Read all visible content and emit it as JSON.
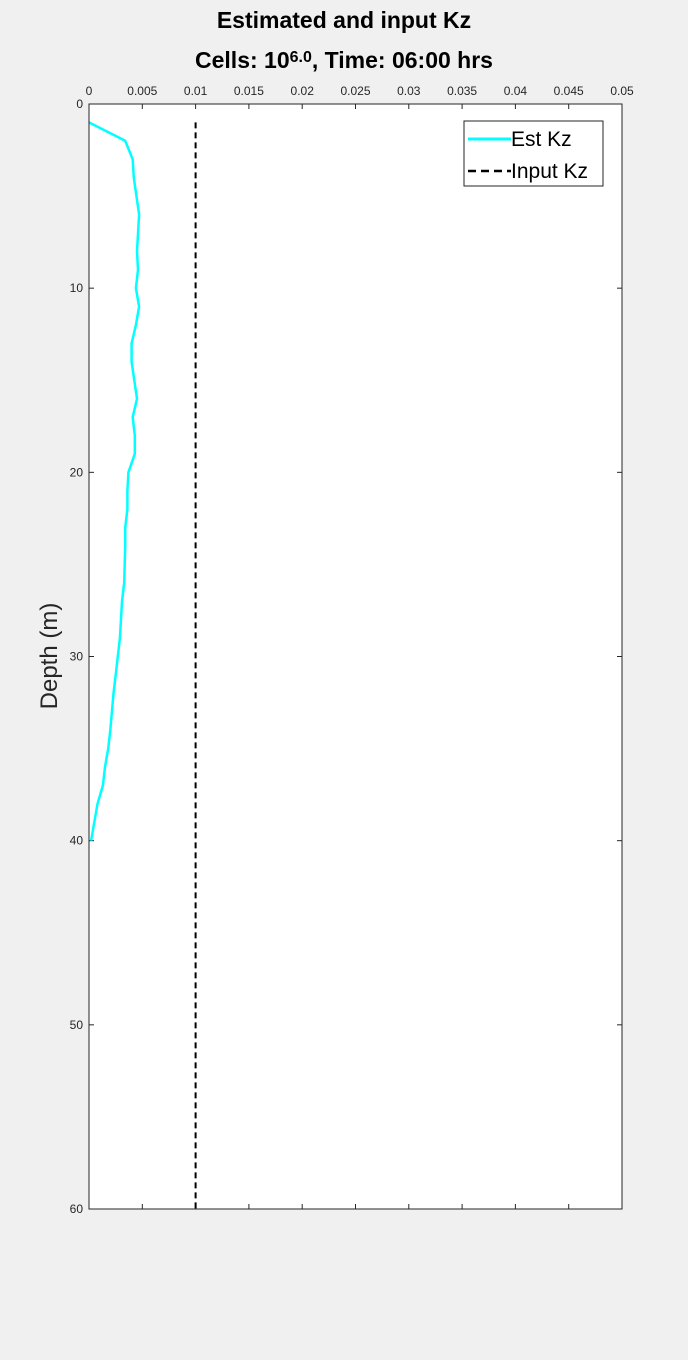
{
  "chart_data": {
    "type": "line",
    "title": "Estimated and input Kz",
    "subtitle_prefix": "Cells: 10",
    "subtitle_exponent": "6.0",
    "subtitle_suffix": ", Time: 06:00 hrs",
    "xlabel": "",
    "ylabel": "Depth (m)",
    "xlim": [
      0,
      0.05
    ],
    "ylim": [
      0,
      60
    ],
    "y_reversed": true,
    "x_axis_location": "top",
    "grid": false,
    "legend_location": "top-right",
    "x_ticks": [
      0,
      0.005,
      0.01,
      0.015,
      0.02,
      0.025,
      0.03,
      0.035,
      0.04,
      0.045,
      0.05
    ],
    "x_tick_labels": [
      "0",
      "0.005",
      "0.01",
      "0.015",
      "0.02",
      "0.025",
      "0.03",
      "0.035",
      "0.04",
      "0.045",
      "0.05"
    ],
    "y_ticks": [
      0,
      10,
      20,
      30,
      40,
      50,
      60
    ],
    "y_tick_labels": [
      "0",
      "10",
      "20",
      "30",
      "40",
      "50",
      "60"
    ],
    "series": [
      {
        "name": "Est Kz",
        "color": "#00ffff",
        "style": "solid",
        "x": [
          0.0,
          0.0034,
          0.0041,
          0.0042,
          0.0047,
          0.0045,
          0.0046,
          0.0044,
          0.0047,
          0.0044,
          0.004,
          0.004,
          0.0045,
          0.0041,
          0.0043,
          0.0043,
          0.0037,
          0.0036,
          0.0036,
          0.0034,
          0.0034,
          0.0033,
          0.0031,
          0.0029,
          0.0025,
          0.0023,
          0.002,
          0.0018,
          0.0015,
          0.0013,
          0.0008,
          0.0002
        ],
        "y": [
          1,
          2,
          3,
          4,
          6,
          8,
          9,
          10,
          11,
          12,
          13,
          14,
          16,
          17,
          18,
          19,
          20,
          21,
          22,
          23,
          24,
          26,
          27,
          29,
          31,
          32,
          34,
          35,
          36,
          37,
          38,
          40
        ]
      },
      {
        "name": "Input Kz",
        "color": "#000000",
        "style": "dashed",
        "x": [
          0.01,
          0.01
        ],
        "y": [
          1,
          60
        ]
      }
    ]
  }
}
